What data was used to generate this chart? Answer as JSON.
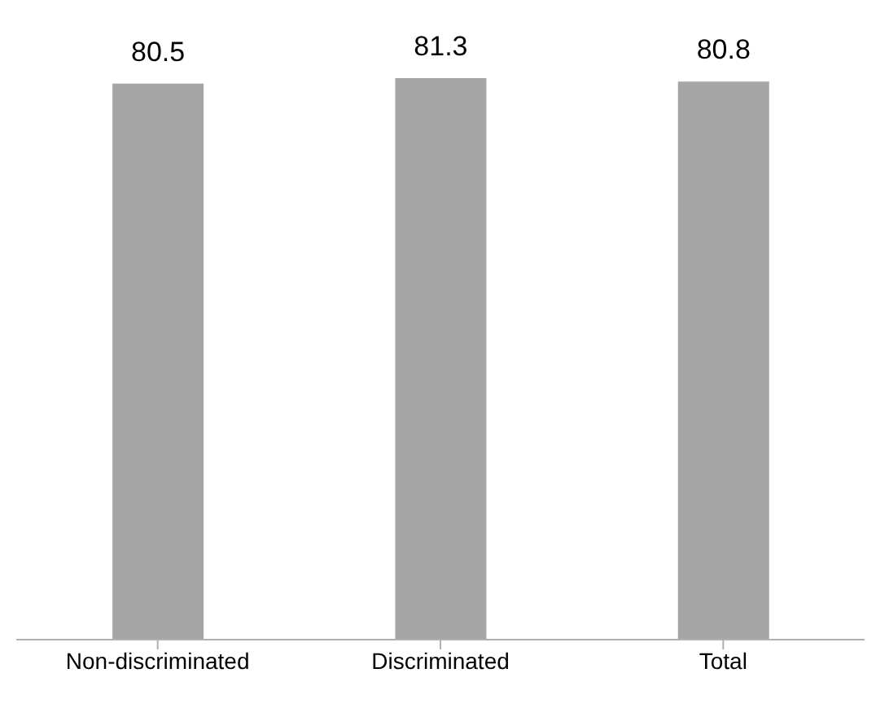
{
  "chart_data": {
    "type": "bar",
    "categories": [
      "Non-discriminated",
      "Discriminated",
      "Total"
    ],
    "values": [
      80.5,
      81.3,
      80.8
    ],
    "color": "#a5a5a5",
    "data_labels": true
  }
}
